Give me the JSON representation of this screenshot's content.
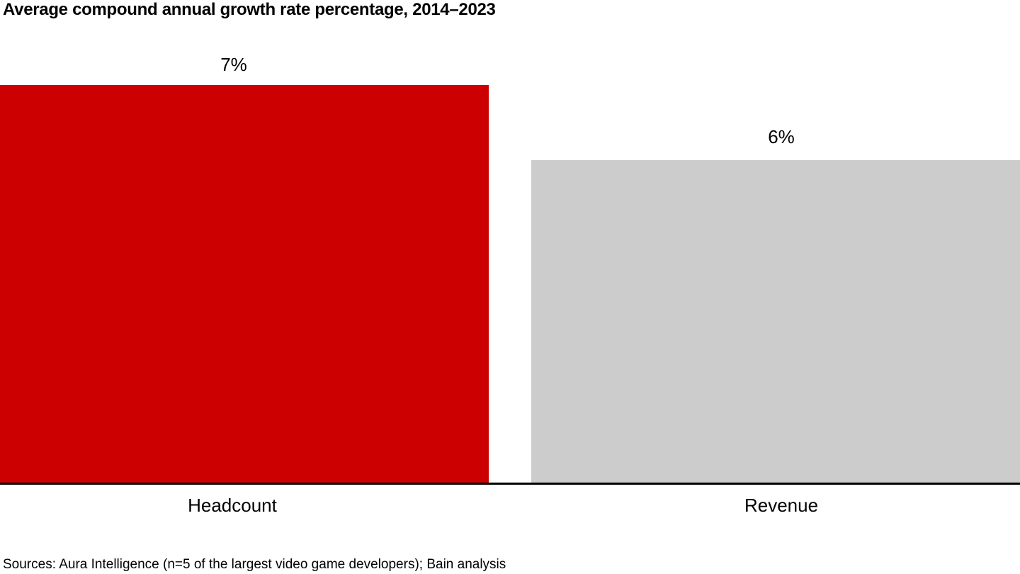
{
  "chart": {
    "title": "Average compound annual growth rate percentage, 2014–2023",
    "sources": "Sources: Aura Intelligence (n=5 of the largest video game developers); Bain analysis",
    "bars": [
      {
        "category": "Headcount",
        "value_label": "7%",
        "color": "#cc0000"
      },
      {
        "category": "Revenue",
        "value_label": "6%",
        "color": "#cccccc"
      }
    ],
    "axis_color": "#000000"
  },
  "chart_data": {
    "type": "bar",
    "title": "Average compound annual growth rate percentage, 2014–2023",
    "categories": [
      "Headcount",
      "Revenue"
    ],
    "values": [
      7,
      6
    ],
    "value_labels": [
      "7%",
      "6%"
    ],
    "unit": "percent",
    "series_colors": [
      "#cc0000",
      "#cccccc"
    ],
    "xlabel": "",
    "ylabel": "",
    "ylim": [
      0,
      7.8
    ],
    "grid": false,
    "legend": false,
    "baseline_axis": true,
    "annotations": [
      "Sources: Aura Intelligence (n=5 of the largest video game developers); Bain analysis"
    ]
  }
}
